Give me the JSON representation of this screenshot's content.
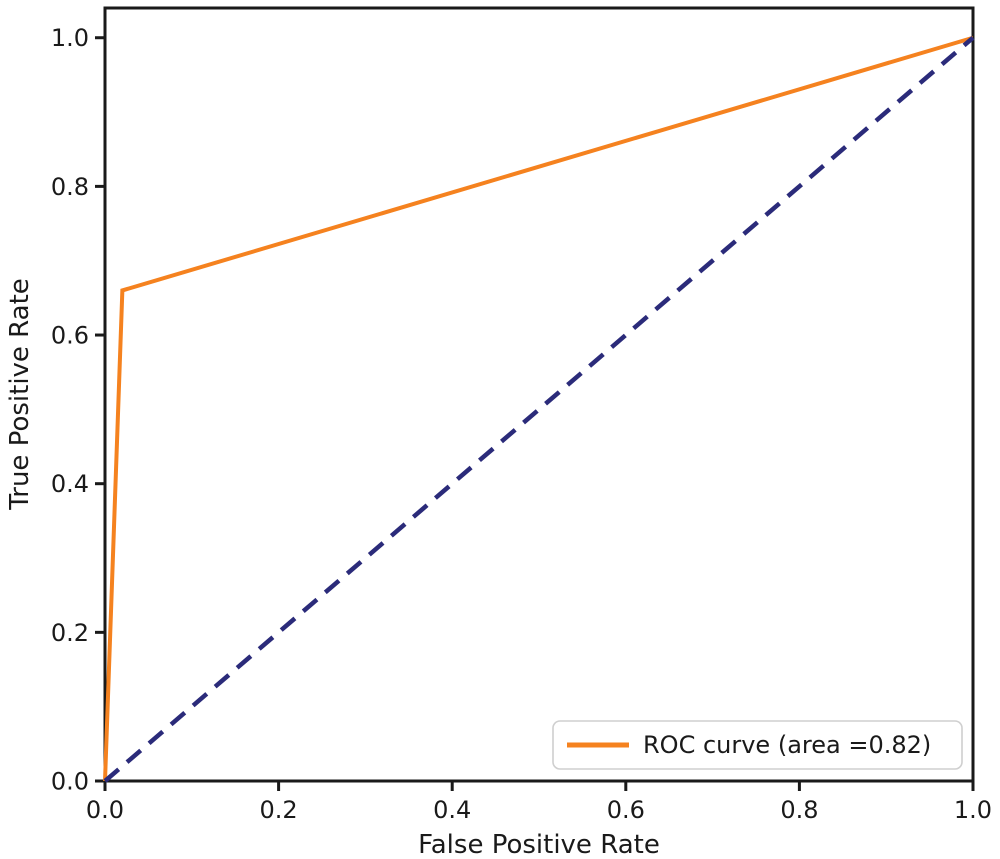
{
  "chart_data": {
    "type": "line",
    "title": "",
    "xlabel": "False Positive Rate",
    "ylabel": "True Positive Rate",
    "xlim": [
      0.0,
      1.0
    ],
    "ylim": [
      0.0,
      1.04
    ],
    "xticks": [
      0.0,
      0.2,
      0.4,
      0.6,
      0.8,
      1.0
    ],
    "xtick_labels": [
      "0.0",
      "0.2",
      "0.4",
      "0.6",
      "0.8",
      "1.0"
    ],
    "yticks": [
      0.0,
      0.2,
      0.4,
      0.6,
      0.8,
      1.0
    ],
    "ytick_labels": [
      "0.0",
      "0.2",
      "0.4",
      "0.6",
      "0.8",
      "1.0"
    ],
    "grid": false,
    "legend": {
      "position": "lower right",
      "entries": [
        "ROC curve (area =0.82)"
      ]
    },
    "series": [
      {
        "id": "roc-curve",
        "name": "ROC curve (area =0.82)",
        "x": [
          0.0,
          0.02,
          1.0
        ],
        "y": [
          0.0,
          0.66,
          1.0
        ],
        "color": "#f5821f",
        "style": "solid",
        "width": 4,
        "in_legend": true
      },
      {
        "id": "chance-diagonal",
        "x": [
          0.0,
          1.0
        ],
        "y": [
          0.0,
          1.0
        ],
        "color": "#2b2b7a",
        "style": "dashed",
        "width": 4.5,
        "in_legend": false
      }
    ],
    "colors": {
      "text": "#1a1a1a",
      "spines": "#1a1a1a",
      "background": "#ffffff",
      "legend_border": "#cfcfcf"
    }
  }
}
